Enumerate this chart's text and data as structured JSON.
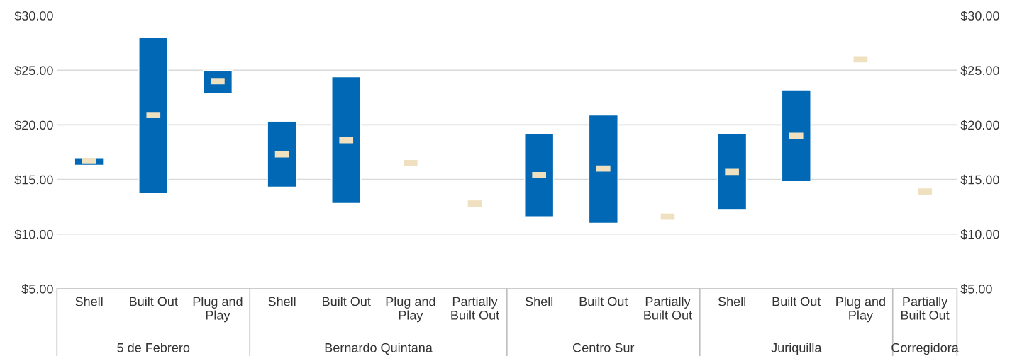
{
  "chart_data": {
    "type": "bar",
    "categories": [
      "Shell",
      "Built Out",
      "Plug and\nPlay",
      "Shell",
      "Built Out",
      "Plug and\nPlay",
      "Partially\nBuilt Out",
      "Shell",
      "Built Out",
      "Partially\nBuilt Out",
      "Shell",
      "Built Out",
      "Plug and\nPlay",
      "Partially\nBuilt Out"
    ],
    "series": [
      {
        "color": "#0068b4",
        "base": [
          16.3,
          13.7,
          22.9,
          14.3,
          12.8,
          null,
          null,
          11.6,
          11.0,
          null,
          12.2,
          14.8,
          null,
          null
        ],
        "values": [
          0.7,
          14.3,
          2.1,
          6.0,
          11.6,
          null,
          null,
          7.6,
          9.9,
          null,
          7.0,
          8.4,
          null,
          null
        ]
      },
      {
        "type": "scatter",
        "color": "#efe0c0",
        "values": [
          16.7,
          20.9,
          24.0,
          17.3,
          18.6,
          16.5,
          12.8,
          15.4,
          16.0,
          11.6,
          15.7,
          19.0,
          26.0,
          13.9
        ]
      }
    ],
    "annotations": [
      "5 de Febrero",
      "Bernardo Quintana",
      "Centro Sur",
      "Juriquilla",
      "Corregidora"
    ],
    "ylim": [
      5,
      30
    ],
    "yticks": [
      {
        "value": 5,
        "label": "$5.00"
      },
      {
        "value": 10,
        "label": "$10.00"
      },
      {
        "value": 15,
        "label": "$15.00"
      },
      {
        "value": 20,
        "label": "$20.00"
      },
      {
        "value": 25,
        "label": "$25.00"
      },
      {
        "value": 30,
        "label": "$30.00"
      }
    ],
    "y2lim": [
      5,
      30
    ],
    "y2ticks": [
      {
        "value": 5,
        "label": "$5.00"
      },
      {
        "value": 10,
        "label": "$10.00"
      },
      {
        "value": 15,
        "label": "$15.00"
      },
      {
        "value": 20,
        "label": "$20.00"
      },
      {
        "value": 25,
        "label": "$25.00"
      },
      {
        "value": 30,
        "label": "$30.00"
      }
    ],
    "grid": "y",
    "legend": false
  }
}
